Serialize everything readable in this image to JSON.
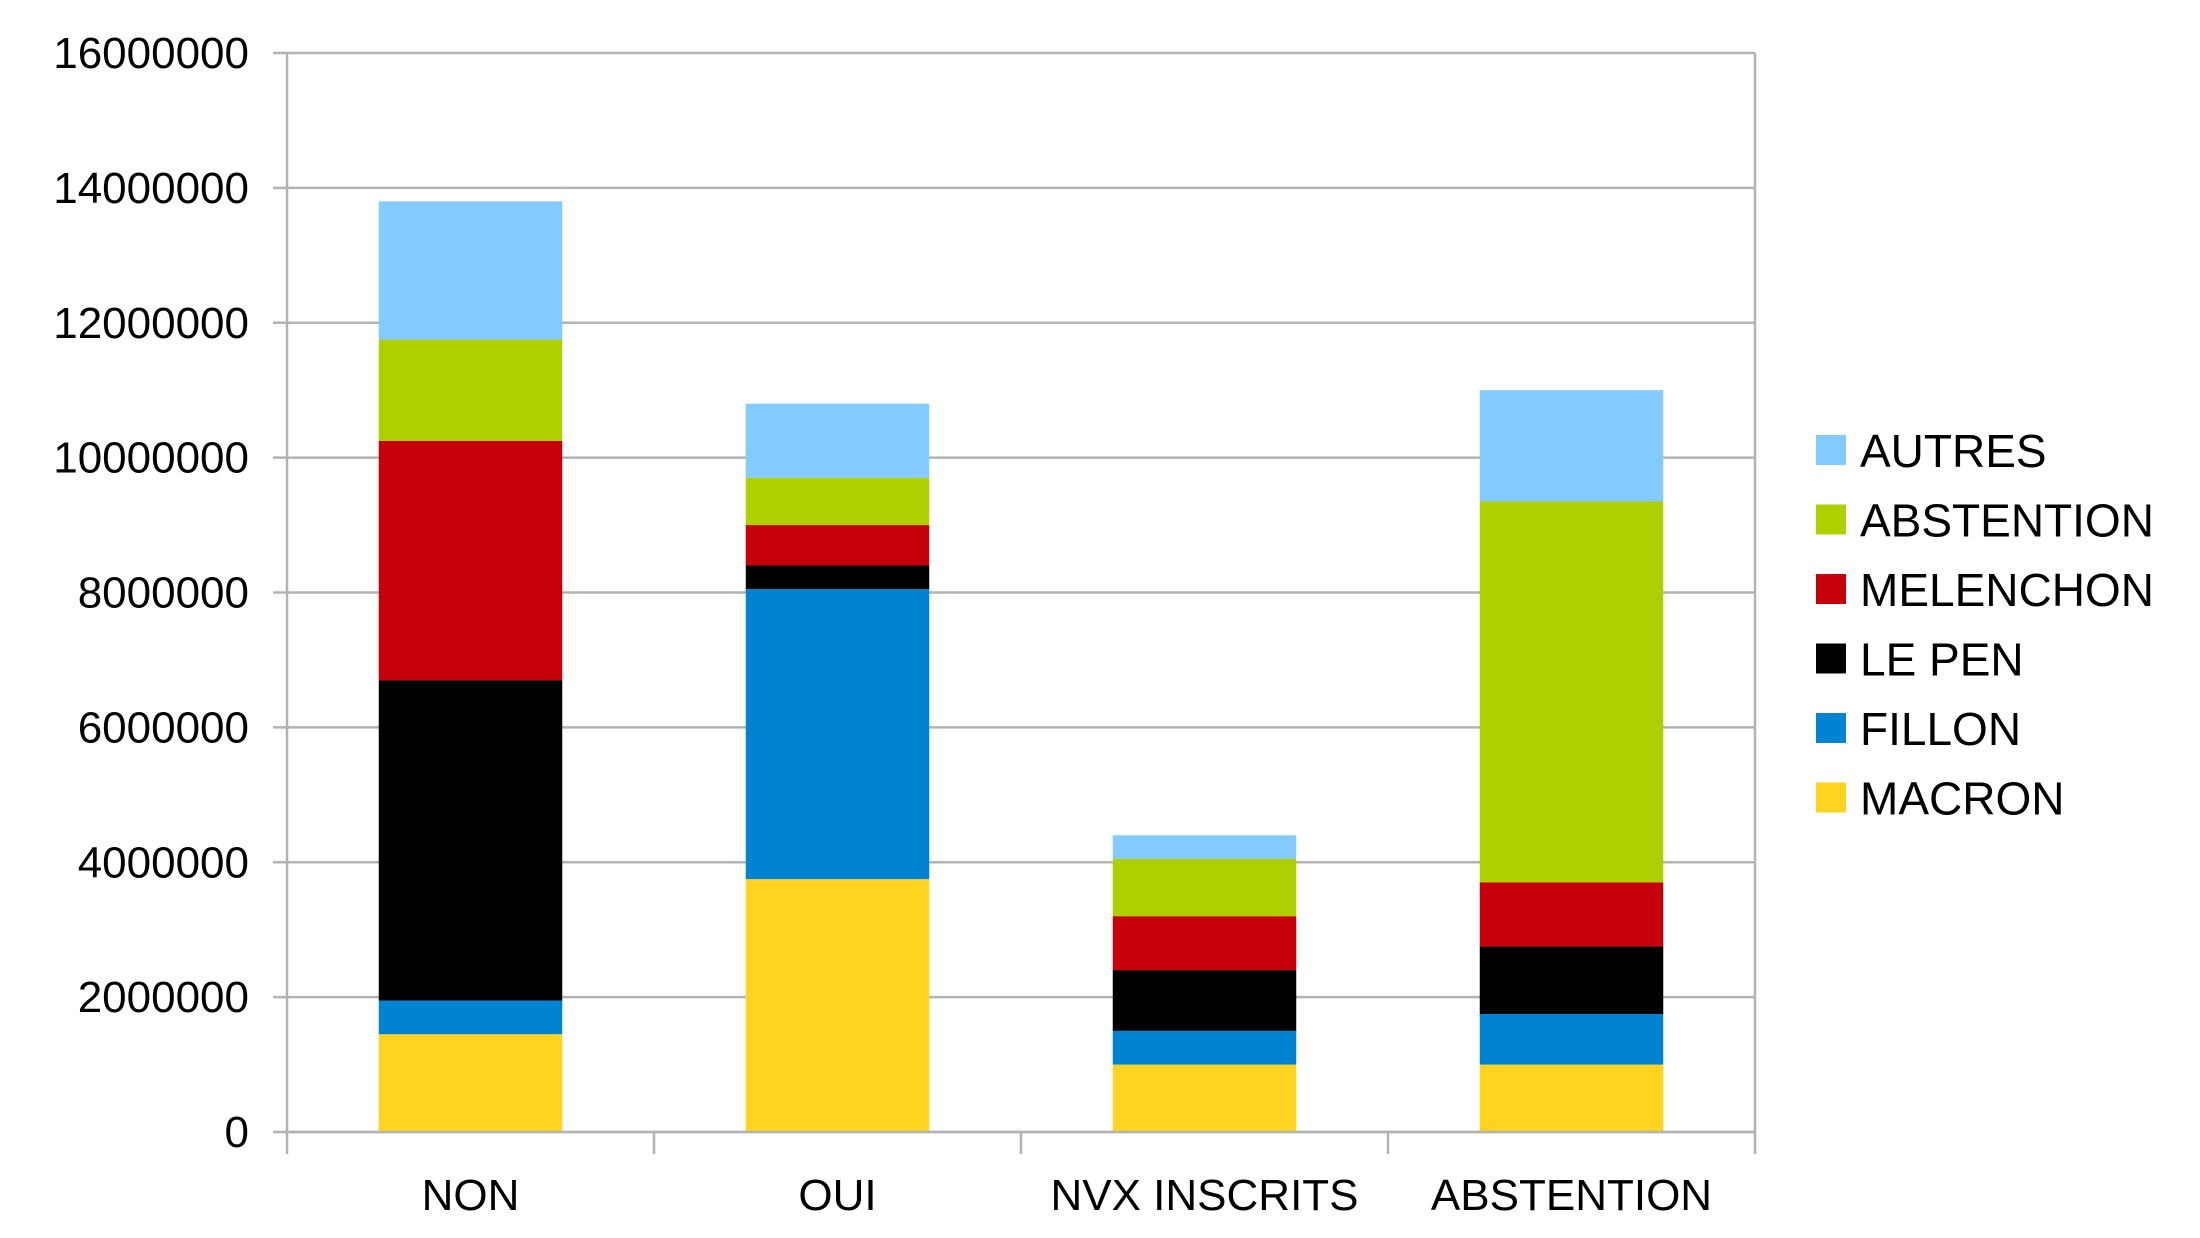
{
  "chart_data": {
    "type": "bar",
    "stacked": true,
    "title": "",
    "xlabel": "",
    "ylabel": "",
    "ylim": [
      0,
      16000000
    ],
    "yticks": [
      0,
      2000000,
      4000000,
      6000000,
      8000000,
      10000000,
      12000000,
      14000000,
      16000000
    ],
    "grid": true,
    "legend_position": "right",
    "categories": [
      "NON",
      "OUI",
      "NVX INSCRITS",
      "ABSTENTION"
    ],
    "series": [
      {
        "name": "MACRON",
        "color": "#ffd320",
        "values": [
          1450000,
          3750000,
          1000000,
          1000000
        ]
      },
      {
        "name": "FILLON",
        "color": "#0084d1",
        "values": [
          500000,
          4300000,
          500000,
          750000
        ]
      },
      {
        "name": "LE PEN",
        "color": "#000000",
        "values": [
          4750000,
          350000,
          900000,
          1000000
        ]
      },
      {
        "name": "MELENCHON",
        "color": "#c5000b",
        "values": [
          3550000,
          600000,
          800000,
          950000
        ]
      },
      {
        "name": "ABSTENTION",
        "color": "#aecf00",
        "values": [
          1500000,
          700000,
          850000,
          5650000
        ]
      },
      {
        "name": "AUTRES",
        "color": "#83caff",
        "values": [
          2050000,
          1100000,
          350000,
          1650000
        ]
      }
    ]
  }
}
